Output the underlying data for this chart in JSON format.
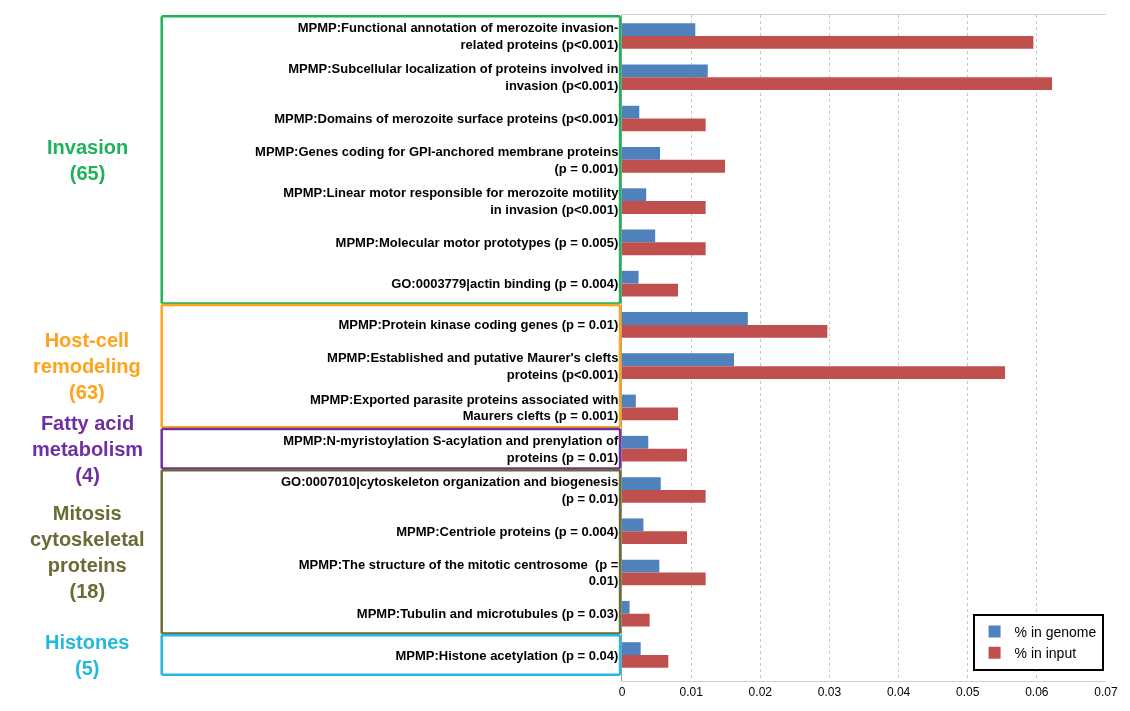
{
  "chart_data": {
    "type": "bar",
    "orientation": "horizontal",
    "categories": [
      "MPMP:Functional annotation of merozoite invasion-related proteins (p<0.001)",
      "MPMP:Subcellular localization of proteins involved in invasion (p<0.001)",
      "MPMP:Domains of merozoite surface proteins (p<0.001)",
      "MPMP:Genes coding for GPI-anchored membrane proteins (p = 0.001)",
      "MPMP:Linear motor responsible for merozoite motility in invasion (p<0.001)",
      "MPMP:Molecular motor prototypes (p = 0.005)",
      "GO:0003779|actin binding (p = 0.004)",
      "MPMP:Protein kinase coding genes (p = 0.01)",
      "MPMP:Established and putative Maurer's clefts proteins (p<0.001)",
      "MPMP:Exported parasite proteins associated with Maurers clefts (p = 0.001)",
      "MPMP:N-myristoylation S-acylation and prenylation of proteins (p = 0.01)",
      "GO:0007010|cytoskeleton organization and biogenesis (p = 0.01)",
      "MPMP:Centriole proteins (p = 0.004)",
      "MPMP:The structure of the mitotic centrosome  (p = 0.01)",
      "MPMP:Tubulin and microtubules (p = 0.03)",
      "MPMP:Histone acetylation (p = 0.04)"
    ],
    "series": [
      {
        "name": "% in genome",
        "color": "#4f81bd",
        "values": [
          0.0106,
          0.0124,
          0.0025,
          0.0055,
          0.0035,
          0.0048,
          0.0024,
          0.0182,
          0.0162,
          0.002,
          0.0038,
          0.0056,
          0.0031,
          0.0054,
          0.0011,
          0.0027
        ]
      },
      {
        "name": "% in input",
        "color": "#c0504d",
        "values": [
          0.0595,
          0.0622,
          0.0121,
          0.0149,
          0.0121,
          0.0121,
          0.0081,
          0.0297,
          0.0554,
          0.0081,
          0.0094,
          0.0121,
          0.0094,
          0.0121,
          0.004,
          0.0067
        ]
      }
    ],
    "xlim": [
      0,
      0.07
    ],
    "xticks": [
      0,
      0.01,
      0.02,
      0.03,
      0.04,
      0.05,
      0.06,
      0.07
    ],
    "grid": "x",
    "legend": "bottom right",
    "annotations": [
      "Invasion\n(65)",
      "Host-cell\nremodeling\n(63)",
      "Fatty acid\nmetabolism\n(4)",
      "Mitosis\ncytoskeletal\nproteins\n(18)",
      "Histones\n(5)"
    ]
  }
}
